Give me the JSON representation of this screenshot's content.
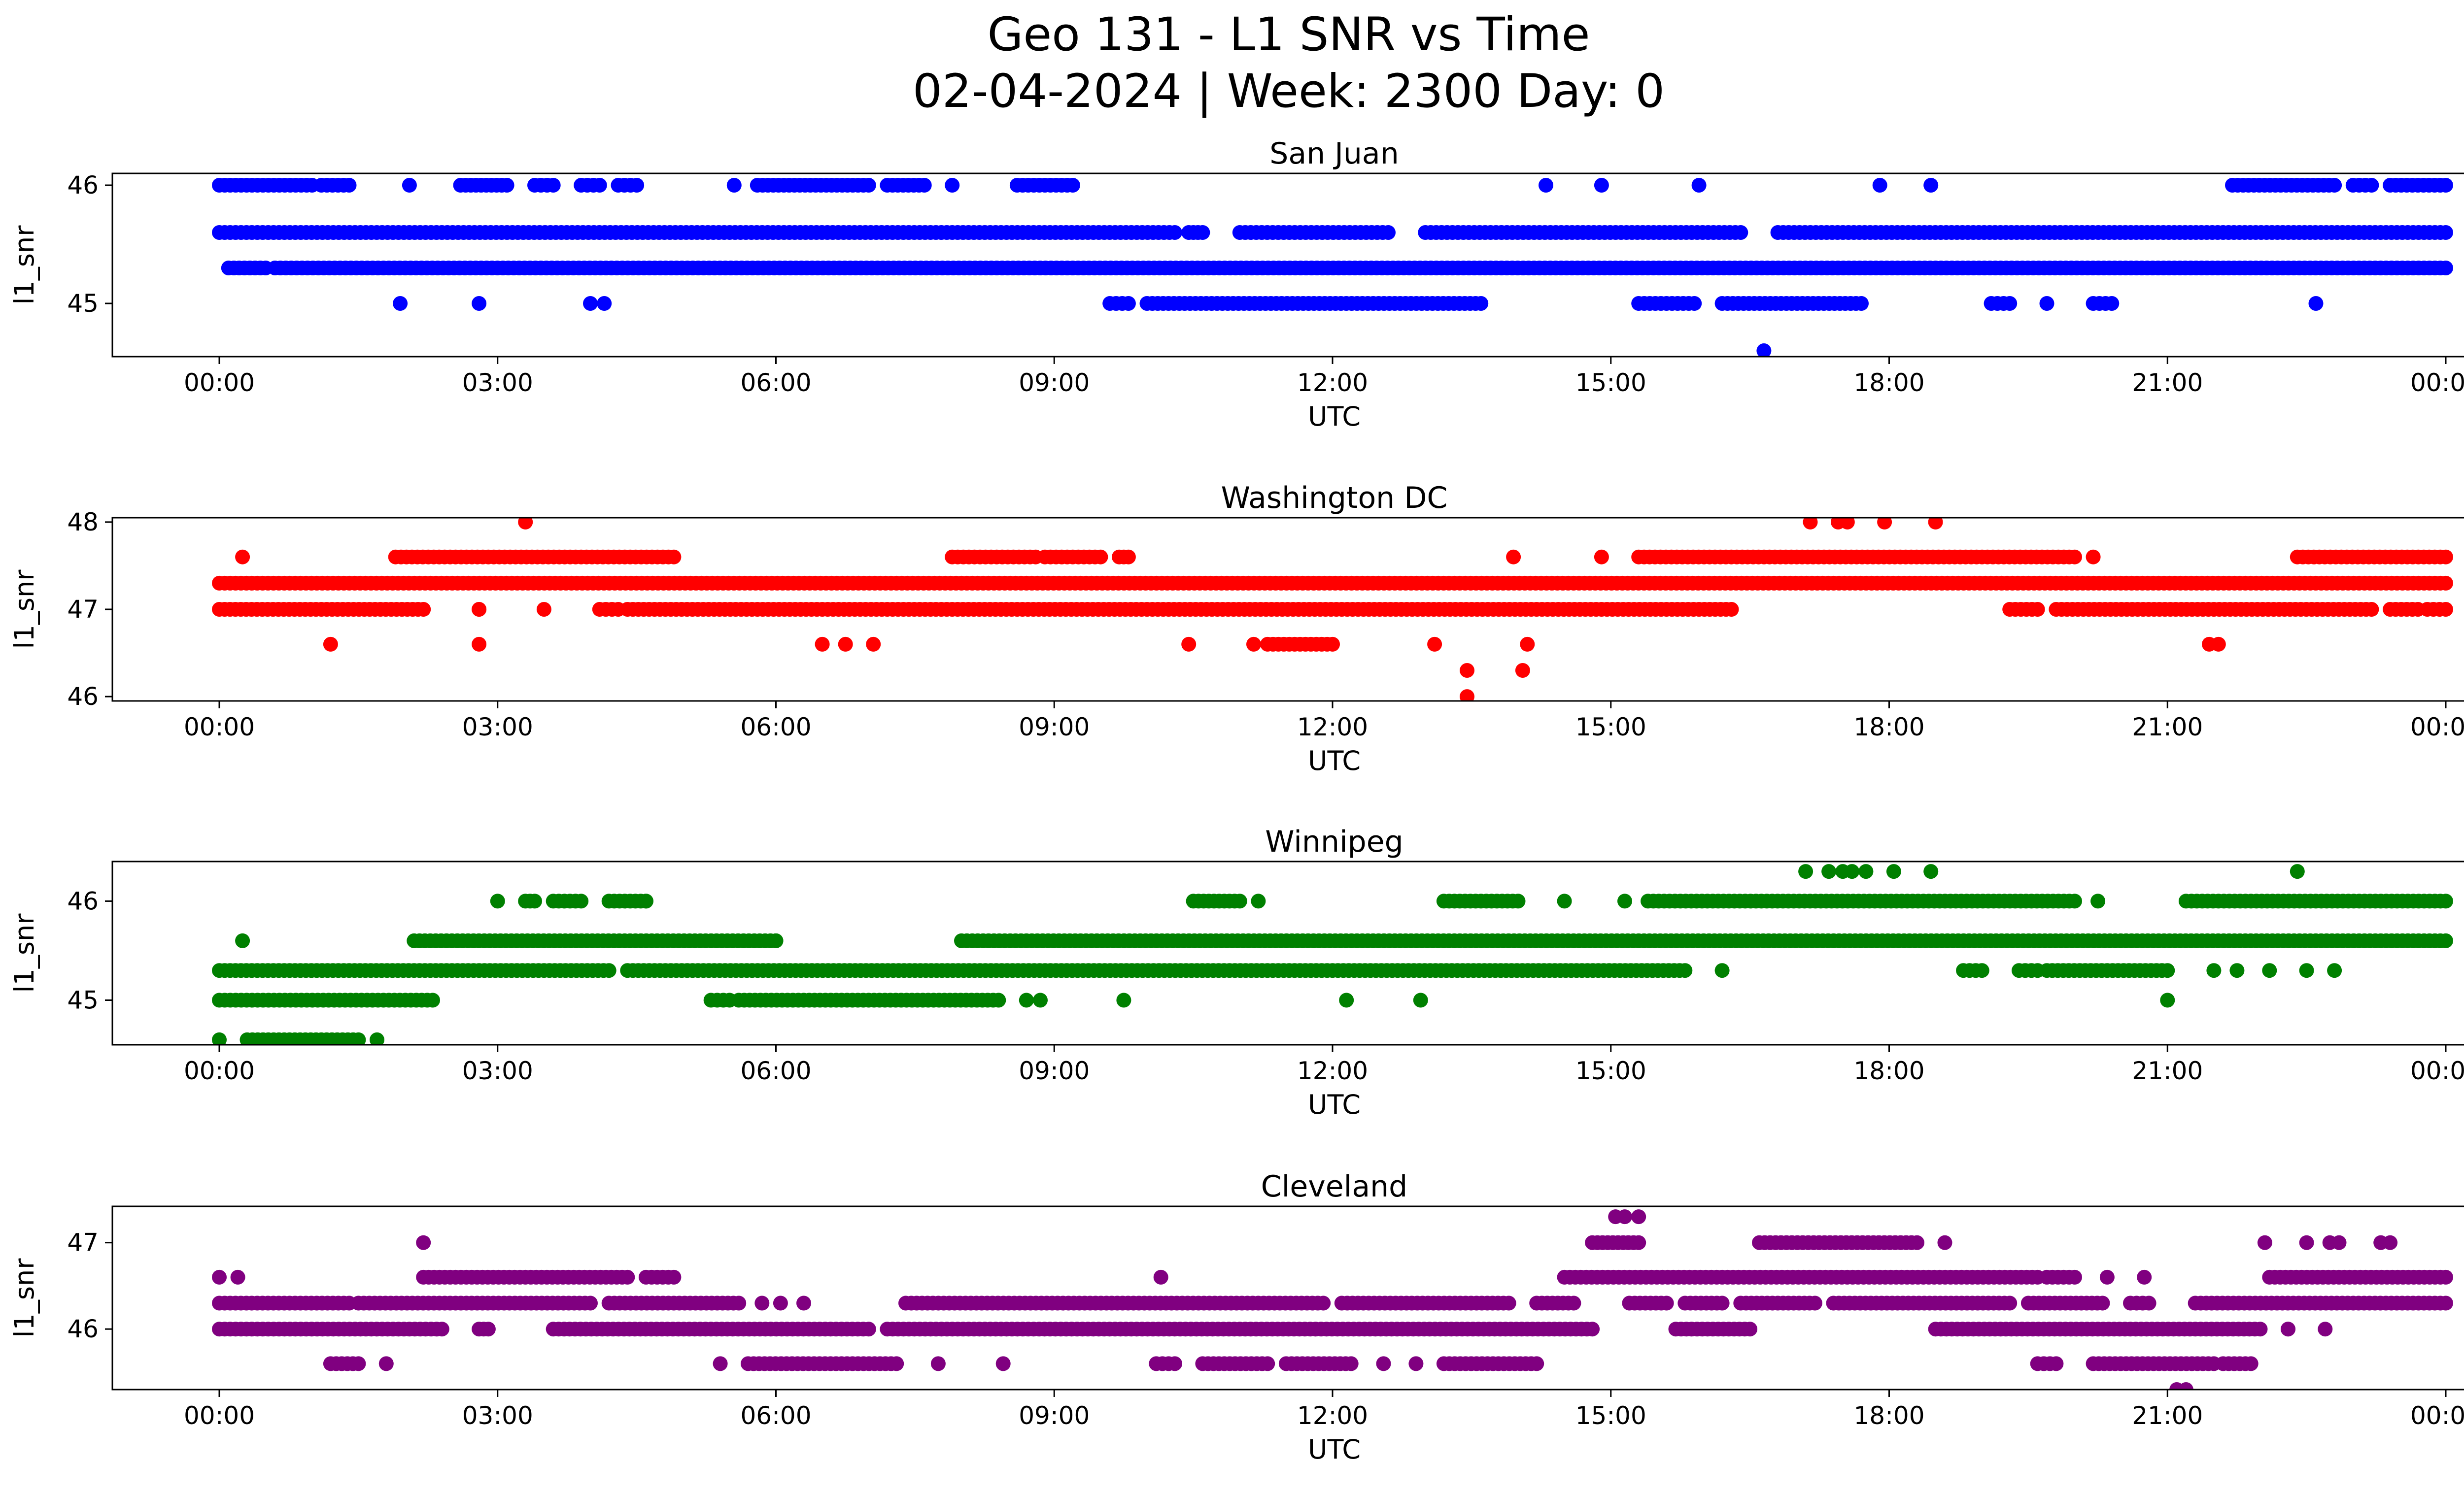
{
  "figure": {
    "title_line1": "Geo 131 - L1 SNR vs Time",
    "title_line2": "02-04-2024 | Week: 2300 Day: 0"
  },
  "chart_data": [
    {
      "type": "scatter",
      "title": "San Juan",
      "xlabel": "UTC",
      "ylabel": "l1_snr",
      "xlim": [
        0,
        24
      ],
      "ylim": [
        44.55,
        46.1
      ],
      "x_ticks": [
        "00:00",
        "03:00",
        "06:00",
        "09:00",
        "12:00",
        "15:00",
        "18:00",
        "21:00",
        "00:00"
      ],
      "y_ticks": [
        45,
        46
      ],
      "color": "#0000ff",
      "bands": [
        {
          "y": 45.6,
          "segments": [
            [
              0.0,
              10.3
            ],
            [
              10.5,
              10.6
            ],
            [
              11.0,
              12.6
            ],
            [
              13.0,
              16.4
            ],
            [
              16.8,
              24.0
            ]
          ]
        },
        {
          "y": 45.3,
          "segments": [
            [
              0.1,
              0.5
            ],
            [
              0.6,
              24.0
            ]
          ]
        },
        {
          "y": 46.0,
          "segments": [
            [
              0.0,
              1.0
            ],
            [
              1.1,
              1.4
            ],
            [
              2.6,
              3.1
            ],
            [
              3.4,
              3.6
            ],
            [
              3.9,
              4.1
            ],
            [
              4.3,
              4.5
            ],
            [
              5.8,
              7.0
            ],
            [
              7.2,
              7.6
            ],
            [
              8.6,
              9.2
            ],
            [
              21.7,
              22.8
            ],
            [
              23.0,
              23.2
            ],
            [
              23.4,
              24.0
            ]
          ]
        },
        {
          "y": 45.0,
          "segments": [
            [
              9.6,
              9.8
            ],
            [
              10.0,
              13.6
            ],
            [
              15.3,
              15.9
            ],
            [
              16.2,
              17.7
            ],
            [
              19.1,
              19.3
            ],
            [
              20.2,
              20.4
            ]
          ]
        }
      ],
      "points": [
        [
          2.05,
          46.0
        ],
        [
          1.95,
          45.0
        ],
        [
          2.8,
          45.0
        ],
        [
          4.0,
          45.0
        ],
        [
          4.15,
          45.0
        ],
        [
          5.55,
          46.0
        ],
        [
          7.9,
          46.0
        ],
        [
          14.3,
          46.0
        ],
        [
          14.9,
          46.0
        ],
        [
          15.95,
          46.0
        ],
        [
          17.9,
          46.0
        ],
        [
          18.45,
          46.0
        ],
        [
          19.7,
          45.0
        ],
        [
          22.6,
          45.0
        ],
        [
          16.65,
          44.6
        ],
        [
          10.45,
          45.6
        ]
      ]
    },
    {
      "type": "scatter",
      "title": "Washington DC",
      "xlabel": "UTC",
      "ylabel": "l1_snr",
      "xlim": [
        0,
        24
      ],
      "ylim": [
        45.95,
        48.05
      ],
      "x_ticks": [
        "00:00",
        "03:00",
        "06:00",
        "09:00",
        "12:00",
        "15:00",
        "18:00",
        "21:00",
        "00:00"
      ],
      "y_ticks": [
        46,
        47,
        48
      ],
      "color": "#ff0000",
      "bands": [
        {
          "y": 47.3,
          "segments": [
            [
              0.0,
              24.0
            ]
          ]
        },
        {
          "y": 47.0,
          "segments": [
            [
              0.0,
              2.2
            ],
            [
              2.8,
              2.8
            ],
            [
              4.1,
              4.3
            ],
            [
              4.4,
              16.3
            ],
            [
              19.3,
              19.6
            ],
            [
              19.8,
              23.2
            ],
            [
              23.4,
              23.7
            ],
            [
              23.8,
              24.0
            ]
          ]
        },
        {
          "y": 47.6,
          "segments": [
            [
              1.9,
              4.9
            ],
            [
              7.9,
              8.8
            ],
            [
              8.9,
              9.5
            ],
            [
              9.7,
              9.8
            ],
            [
              15.3,
              20.0
            ],
            [
              22.4,
              24.0
            ]
          ]
        },
        {
          "y": 46.6,
          "segments": [
            [
              11.3,
              12.0
            ]
          ]
        }
      ],
      "points": [
        [
          0.25,
          47.6
        ],
        [
          1.2,
          46.6
        ],
        [
          2.8,
          46.6
        ],
        [
          3.3,
          48.0
        ],
        [
          3.5,
          47.0
        ],
        [
          6.5,
          46.6
        ],
        [
          6.75,
          46.6
        ],
        [
          7.05,
          46.6
        ],
        [
          10.45,
          46.6
        ],
        [
          11.15,
          46.6
        ],
        [
          13.1,
          46.6
        ],
        [
          13.45,
          46.3
        ],
        [
          13.45,
          46.0
        ],
        [
          14.05,
          46.3
        ],
        [
          14.1,
          46.6
        ],
        [
          13.95,
          47.6
        ],
        [
          14.9,
          47.6
        ],
        [
          17.15,
          48.0
        ],
        [
          17.45,
          48.0
        ],
        [
          17.55,
          48.0
        ],
        [
          17.95,
          48.0
        ],
        [
          18.5,
          48.0
        ],
        [
          20.2,
          47.6
        ],
        [
          21.45,
          46.6
        ],
        [
          21.55,
          46.6
        ]
      ]
    },
    {
      "type": "scatter",
      "title": "Winnipeg",
      "xlabel": "UTC",
      "ylabel": "l1_snr",
      "xlim": [
        0,
        24
      ],
      "ylim": [
        44.55,
        46.4
      ],
      "x_ticks": [
        "00:00",
        "03:00",
        "06:00",
        "09:00",
        "12:00",
        "15:00",
        "18:00",
        "21:00",
        "00:00"
      ],
      "y_ticks": [
        45,
        46
      ],
      "color": "#008000",
      "bands": [
        {
          "y": 45.3,
          "segments": [
            [
              0.0,
              4.2
            ],
            [
              4.4,
              15.8
            ],
            [
              18.8,
              19.0
            ],
            [
              19.4,
              19.6
            ],
            [
              19.7,
              21.0
            ]
          ]
        },
        {
          "y": 45.6,
          "segments": [
            [
              2.1,
              6.0
            ],
            [
              8.0,
              24.0
            ]
          ]
        },
        {
          "y": 45.0,
          "segments": [
            [
              0.0,
              2.3
            ],
            [
              5.3,
              5.5
            ],
            [
              5.6,
              8.4
            ]
          ]
        },
        {
          "y": 46.0,
          "segments": [
            [
              3.3,
              3.4
            ],
            [
              3.6,
              3.9
            ],
            [
              4.2,
              4.6
            ],
            [
              10.5,
              11.0
            ],
            [
              13.2,
              14.0
            ],
            [
              15.4,
              20.0
            ],
            [
              21.2,
              24.0
            ]
          ]
        },
        {
          "y": 44.6,
          "segments": [
            [
              0.3,
              1.5
            ]
          ]
        }
      ],
      "points": [
        [
          0.0,
          44.6
        ],
        [
          0.25,
          45.6
        ],
        [
          1.7,
          44.6
        ],
        [
          3.0,
          46.0
        ],
        [
          4.6,
          46.0
        ],
        [
          6.0,
          45.6
        ],
        [
          8.7,
          45.0
        ],
        [
          8.85,
          45.0
        ],
        [
          9.75,
          45.0
        ],
        [
          11.2,
          46.0
        ],
        [
          12.15,
          45.0
        ],
        [
          12.95,
          45.0
        ],
        [
          14.5,
          46.0
        ],
        [
          15.15,
          46.0
        ],
        [
          16.2,
          45.3
        ],
        [
          17.1,
          46.3
        ],
        [
          17.35,
          46.3
        ],
        [
          17.5,
          46.3
        ],
        [
          17.6,
          46.3
        ],
        [
          17.75,
          46.3
        ],
        [
          18.05,
          46.3
        ],
        [
          18.45,
          46.3
        ],
        [
          20.25,
          46.0
        ],
        [
          21.0,
          45.0
        ],
        [
          21.5,
          45.3
        ],
        [
          21.75,
          45.3
        ],
        [
          22.1,
          45.3
        ],
        [
          22.5,
          45.3
        ],
        [
          22.8,
          45.3
        ],
        [
          22.4,
          46.3
        ]
      ]
    },
    {
      "type": "scatter",
      "title": "Cleveland",
      "xlabel": "UTC",
      "ylabel": "l1_snr",
      "xlim": [
        0,
        24
      ],
      "ylim": [
        45.3,
        47.42
      ],
      "x_ticks": [
        "00:00",
        "03:00",
        "06:00",
        "09:00",
        "12:00",
        "15:00",
        "18:00",
        "21:00",
        "00:00"
      ],
      "y_ticks": [
        46,
        47
      ],
      "color": "#800080",
      "bands": [
        {
          "y": 46.0,
          "segments": [
            [
              0.0,
              2.4
            ],
            [
              2.8,
              2.9
            ],
            [
              3.6,
              7.0
            ],
            [
              7.2,
              14.8
            ],
            [
              15.7,
              16.5
            ],
            [
              18.5,
              22.0
            ],
            [
              22.3,
              22.3
            ]
          ]
        },
        {
          "y": 46.3,
          "segments": [
            [
              0.0,
              1.4
            ],
            [
              1.5,
              4.0
            ],
            [
              4.2,
              5.6
            ],
            [
              7.4,
              11.9
            ],
            [
              12.1,
              13.9
            ],
            [
              14.2,
              14.6
            ],
            [
              15.2,
              15.6
            ],
            [
              15.8,
              16.2
            ],
            [
              16.4,
              17.2
            ],
            [
              17.4,
              19.3
            ],
            [
              19.5,
              20.3
            ],
            [
              20.6,
              20.8
            ],
            [
              21.3,
              24.0
            ]
          ]
        },
        {
          "y": 46.6,
          "segments": [
            [
              2.2,
              4.4
            ],
            [
              4.6,
              4.9
            ],
            [
              14.5,
              19.6
            ],
            [
              19.7,
              20.0
            ],
            [
              22.1,
              24.0
            ]
          ]
        },
        {
          "y": 45.6,
          "segments": [
            [
              1.2,
              1.5
            ],
            [
              5.7,
              7.3
            ],
            [
              10.1,
              10.3
            ],
            [
              10.6,
              11.3
            ],
            [
              11.5,
              12.2
            ],
            [
              13.2,
              14.2
            ],
            [
              19.6,
              19.8
            ],
            [
              20.2,
              21.5
            ],
            [
              21.6,
              21.9
            ]
          ]
        },
        {
          "y": 47.0,
          "segments": [
            [
              14.8,
              15.3
            ],
            [
              16.6,
              18.3
            ]
          ]
        }
      ],
      "points": [
        [
          0.0,
          46.6
        ],
        [
          0.2,
          46.6
        ],
        [
          1.8,
          45.6
        ],
        [
          2.2,
          47.0
        ],
        [
          5.4,
          45.6
        ],
        [
          5.85,
          46.3
        ],
        [
          6.05,
          46.3
        ],
        [
          6.3,
          46.3
        ],
        [
          7.75,
          45.6
        ],
        [
          8.45,
          45.6
        ],
        [
          10.15,
          46.6
        ],
        [
          12.55,
          45.6
        ],
        [
          12.9,
          45.6
        ],
        [
          15.05,
          47.3
        ],
        [
          15.15,
          47.3
        ],
        [
          15.3,
          47.3
        ],
        [
          18.6,
          47.0
        ],
        [
          20.35,
          46.6
        ],
        [
          20.75,
          46.6
        ],
        [
          21.1,
          45.3
        ],
        [
          21.2,
          45.3
        ],
        [
          22.05,
          47.0
        ],
        [
          22.5,
          47.0
        ],
        [
          22.75,
          47.0
        ],
        [
          22.85,
          47.0
        ],
        [
          22.7,
          46.0
        ],
        [
          23.3,
          47.0
        ],
        [
          23.4,
          47.0
        ]
      ]
    }
  ]
}
